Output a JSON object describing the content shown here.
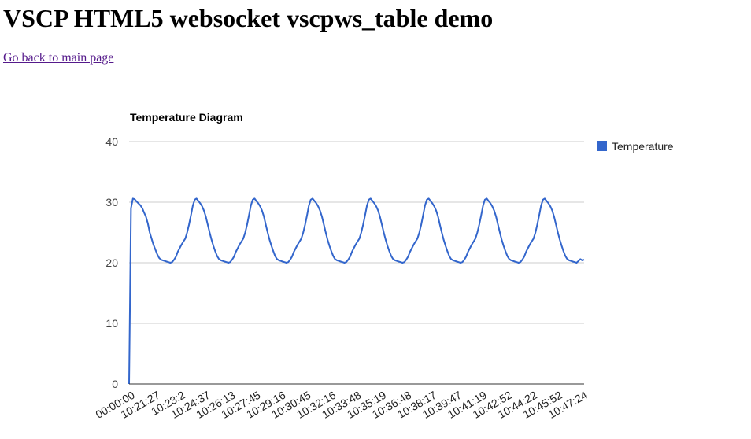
{
  "page": {
    "heading": "VSCP HTML5 websocket vscpws_table demo",
    "back_link": "Go back to main page"
  },
  "chart_data": {
    "type": "line",
    "title": "Temperature Diagram",
    "xlabel": "",
    "ylabel": "",
    "ylim": [
      0,
      40
    ],
    "yticks": [
      0,
      10,
      20,
      30,
      40
    ],
    "grid": true,
    "legend_position": "right",
    "x_tick_labels": [
      "00:00:00",
      "10:21:27",
      "10:23:2",
      "10:24:37",
      "10:26:13",
      "10:27:45",
      "10:29:16",
      "10:30:45",
      "10:32:16",
      "10:33:48",
      "10:35:19",
      "10:36:48",
      "10:38:17",
      "10:39:47",
      "10:41:19",
      "10:42:52",
      "10:44:22",
      "10:45:52",
      "10:47:24"
    ],
    "series": [
      {
        "name": "Temperature",
        "color": "#3366cc",
        "values": [
          0,
          29,
          30.6,
          30.5,
          30.1,
          29.8,
          29.5,
          29,
          28.3,
          27.6,
          26.5,
          25,
          24,
          23,
          22.2,
          21.4,
          20.8,
          20.5,
          20.4,
          20.3,
          20.2,
          20.1,
          20,
          20.1,
          20.5,
          21,
          21.8,
          22.4,
          23,
          23.5,
          24,
          25,
          26.3,
          27.8,
          29.4,
          30.4,
          30.6,
          30.2,
          29.8,
          29.3,
          28.6,
          27.6,
          26.3,
          25,
          23.8,
          22.8,
          21.9,
          21.1,
          20.6,
          20.4,
          20.3,
          20.2,
          20.1,
          20,
          20.1,
          20.5,
          21,
          21.8,
          22.4,
          23,
          23.5,
          24,
          25,
          26.3,
          27.8,
          29.4,
          30.4,
          30.6,
          30.2,
          29.8,
          29.3,
          28.6,
          27.6,
          26.3,
          25,
          23.8,
          22.8,
          21.9,
          21.1,
          20.6,
          20.4,
          20.3,
          20.2,
          20.1,
          20,
          20.1,
          20.5,
          21,
          21.8,
          22.4,
          23,
          23.5,
          24,
          25,
          26.3,
          27.8,
          29.4,
          30.4,
          30.6,
          30.2,
          29.8,
          29.3,
          28.6,
          27.6,
          26.3,
          25,
          23.8,
          22.8,
          21.9,
          21.1,
          20.6,
          20.4,
          20.3,
          20.2,
          20.1,
          20,
          20.1,
          20.5,
          21,
          21.8,
          22.4,
          23,
          23.5,
          24,
          25,
          26.3,
          27.8,
          29.4,
          30.4,
          30.6,
          30.2,
          29.8,
          29.3,
          28.6,
          27.6,
          26.3,
          25,
          23.8,
          22.8,
          21.9,
          21.1,
          20.6,
          20.4,
          20.3,
          20.2,
          20.1,
          20,
          20.1,
          20.5,
          21,
          21.8,
          22.4,
          23,
          23.5,
          24,
          25,
          26.3,
          27.8,
          29.4,
          30.4,
          30.6,
          30.2,
          29.8,
          29.3,
          28.6,
          27.6,
          26.3,
          25,
          23.8,
          22.8,
          21.9,
          21.1,
          20.6,
          20.4,
          20.3,
          20.2,
          20.1,
          20,
          20.1,
          20.5,
          21,
          21.8,
          22.4,
          23,
          23.5,
          24,
          25,
          26.3,
          27.8,
          29.4,
          30.4,
          30.6,
          30.2,
          29.8,
          29.3,
          28.6,
          27.6,
          26.3,
          25,
          23.8,
          22.8,
          21.9,
          21.1,
          20.6,
          20.4,
          20.3,
          20.2,
          20.1,
          20,
          20.1,
          20.5,
          21,
          21.8,
          22.4,
          23,
          23.5,
          24,
          25,
          26.3,
          27.8,
          29.4,
          30.4,
          30.6,
          30.2,
          29.8,
          29.3,
          28.6,
          27.6,
          26.3,
          25,
          23.8,
          22.8,
          21.9,
          21.1,
          20.6,
          20.4,
          20.3,
          20.2,
          20.1,
          20,
          20.3,
          20.6,
          20.4,
          20.5
        ]
      }
    ]
  }
}
